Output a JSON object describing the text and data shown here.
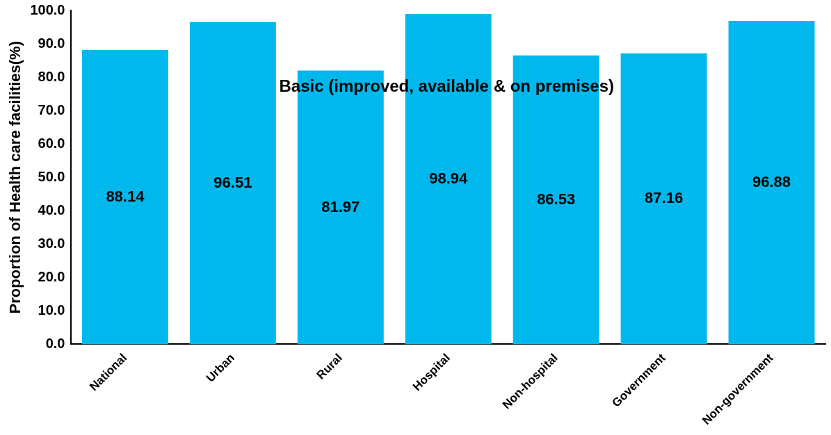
{
  "chart_data": {
    "type": "bar",
    "title": "Basic (improved, available & on premises)",
    "ylabel": "Proportion of Health care facilities(%)",
    "categories": [
      "National",
      "Urban",
      "Rural",
      "Hospital",
      "Non-hospital",
      "Government",
      "Non-government"
    ],
    "values": [
      88.14,
      96.51,
      81.97,
      98.94,
      86.53,
      87.16,
      96.88
    ],
    "color": "#00b8ec",
    "data_labels": true,
    "grid": false,
    "legend": false,
    "ylim": [
      0,
      100
    ],
    "yticks": [
      {
        "value": 0,
        "label": "0.0"
      },
      {
        "value": 10,
        "label": "10.0"
      },
      {
        "value": 20,
        "label": "20.0"
      },
      {
        "value": 30,
        "label": "30.0"
      },
      {
        "value": 40,
        "label": "40.0"
      },
      {
        "value": 50,
        "label": "50.0"
      },
      {
        "value": 60,
        "label": "60.0"
      },
      {
        "value": 70,
        "label": "70.0"
      },
      {
        "value": 80,
        "label": "80.0"
      },
      {
        "value": 90,
        "label": "90.0"
      },
      {
        "value": 100,
        "label": "100.0"
      }
    ]
  }
}
